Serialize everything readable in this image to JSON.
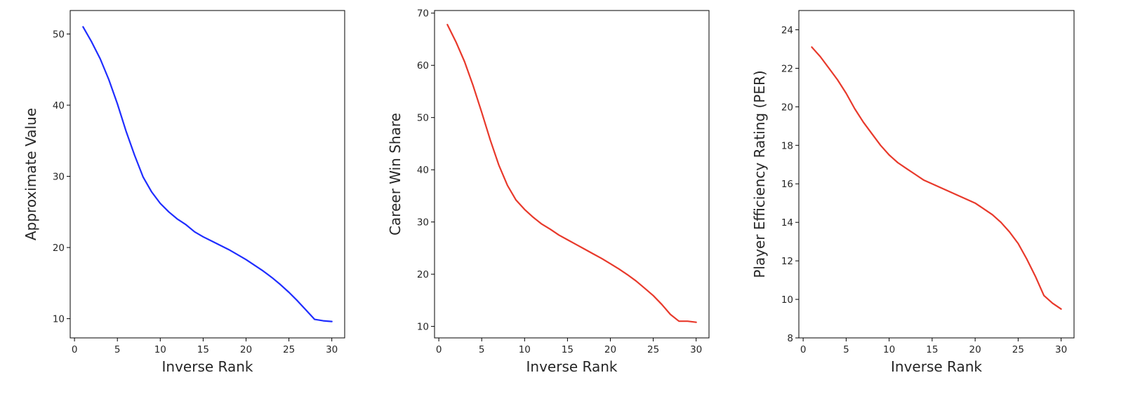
{
  "chart_data": [
    {
      "type": "line",
      "xlabel": "Inverse Rank",
      "ylabel": "Approximate Value",
      "xlim": [
        -0.5,
        31.5
      ],
      "ylim": [
        7.3,
        53.3
      ],
      "xticks": [
        0,
        5,
        10,
        15,
        20,
        25,
        30
      ],
      "yticks": [
        10,
        20,
        30,
        40,
        50
      ],
      "grid": false,
      "color": "#1f2dff",
      "x": [
        1,
        2,
        3,
        4,
        5,
        6,
        7,
        8,
        9,
        10,
        11,
        12,
        13,
        14,
        15,
        16,
        17,
        18,
        19,
        20,
        21,
        22,
        23,
        24,
        25,
        26,
        27,
        28,
        29,
        30
      ],
      "y": [
        51.0,
        48.9,
        46.5,
        43.6,
        40.2,
        36.4,
        33.0,
        29.9,
        27.8,
        26.2,
        25.0,
        24.0,
        23.2,
        22.2,
        21.5,
        20.9,
        20.3,
        19.7,
        19.0,
        18.3,
        17.5,
        16.7,
        15.8,
        14.8,
        13.7,
        12.5,
        11.2,
        9.9,
        9.7,
        9.6
      ]
    },
    {
      "type": "line",
      "xlabel": "Inverse Rank",
      "ylabel": "Career Win Share",
      "xlim": [
        -0.5,
        31.5
      ],
      "ylim": [
        7.8,
        70.5
      ],
      "xticks": [
        0,
        5,
        10,
        15,
        20,
        25,
        30
      ],
      "yticks": [
        10,
        20,
        30,
        40,
        50,
        60,
        70
      ],
      "grid": false,
      "color": "#e8392b",
      "x": [
        1,
        2,
        3,
        4,
        5,
        6,
        7,
        8,
        9,
        10,
        11,
        12,
        13,
        14,
        15,
        16,
        17,
        18,
        19,
        20,
        21,
        22,
        23,
        24,
        25,
        26,
        27,
        28,
        29,
        30
      ],
      "y": [
        67.8,
        64.5,
        60.7,
        56.1,
        51.0,
        45.7,
        40.9,
        37.0,
        34.2,
        32.4,
        30.9,
        29.6,
        28.6,
        27.5,
        26.6,
        25.7,
        24.8,
        23.9,
        23.0,
        22.0,
        21.0,
        19.9,
        18.7,
        17.3,
        15.9,
        14.2,
        12.3,
        11.0,
        11.0,
        10.8
      ]
    },
    {
      "type": "line",
      "xlabel": "Inverse Rank",
      "ylabel": "Player Efficiency Rating (PER)",
      "xlim": [
        -0.5,
        31.5
      ],
      "ylim": [
        8.0,
        25.0
      ],
      "xticks": [
        0,
        5,
        10,
        15,
        20,
        25,
        30
      ],
      "yticks": [
        8,
        10,
        12,
        14,
        16,
        18,
        20,
        22,
        24
      ],
      "grid": false,
      "color": "#e8392b",
      "x": [
        1,
        2,
        3,
        4,
        5,
        6,
        7,
        8,
        9,
        10,
        11,
        12,
        13,
        14,
        15,
        16,
        17,
        18,
        19,
        20,
        21,
        22,
        23,
        24,
        25,
        26,
        27,
        28,
        29,
        30
      ],
      "y": [
        23.1,
        22.6,
        22.0,
        21.4,
        20.7,
        19.9,
        19.2,
        18.6,
        18.0,
        17.5,
        17.1,
        16.8,
        16.5,
        16.2,
        16.0,
        15.8,
        15.6,
        15.4,
        15.2,
        15.0,
        14.7,
        14.4,
        14.0,
        13.5,
        12.9,
        12.1,
        11.2,
        10.2,
        9.8,
        9.5
      ]
    }
  ]
}
